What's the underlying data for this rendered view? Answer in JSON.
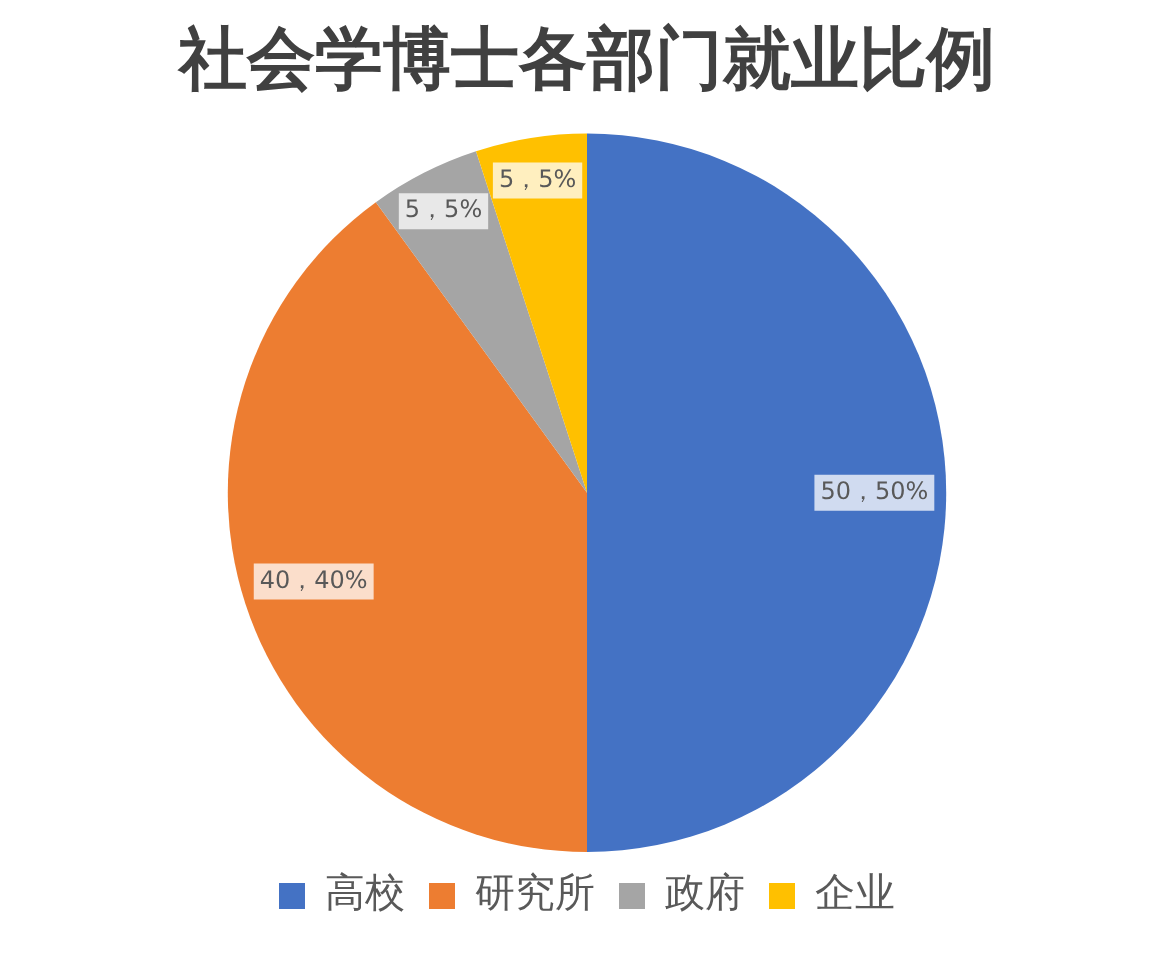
{
  "chart_data": {
    "type": "pie",
    "title": "社会学博士各部门就业比例",
    "categories": [
      "高校",
      "研究所",
      "政府",
      "企业"
    ],
    "values": [
      50,
      40,
      5,
      5
    ],
    "colors": [
      "#4472c4",
      "#ed7d31",
      "#a5a5a5",
      "#ffc000"
    ],
    "value_labels": [
      "50，50%",
      "40，40%",
      "5，5%",
      "5，5%"
    ],
    "legend": "bottom"
  }
}
